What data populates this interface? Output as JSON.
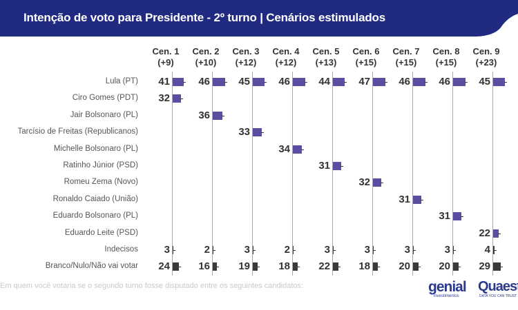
{
  "header": {
    "title": "Intenção de voto para Presidente - 2º turno | Cenários estimulados",
    "background": "#1f2a80"
  },
  "footer": {
    "question": "Em quem você votaria se o segundo turno fosse disputado entre os seguintes candidatos:",
    "logo_genial": "genial",
    "logo_genial_sub": "investimentos",
    "logo_quaest": "Quaest",
    "logo_quaest_sub": "DATA YOU CAN TRUST"
  },
  "chart_data": {
    "type": "bar",
    "columns": [
      {
        "label": "Cen. 1",
        "margin": "(+9)"
      },
      {
        "label": "Cen. 2",
        "margin": "(+10)"
      },
      {
        "label": "Cen. 3",
        "margin": "(+12)"
      },
      {
        "label": "Cen. 4",
        "margin": "(+12)"
      },
      {
        "label": "Cen. 5",
        "margin": "(+13)"
      },
      {
        "label": "Cen. 6",
        "margin": "(+15)"
      },
      {
        "label": "Cen. 7",
        "margin": "(+15)"
      },
      {
        "label": "Cen. 8",
        "margin": "(+15)"
      },
      {
        "label": "Cen. 9",
        "margin": "(+23)"
      }
    ],
    "rows": [
      {
        "label": "Lula (PT)",
        "values": [
          41,
          46,
          45,
          46,
          44,
          47,
          46,
          46,
          45
        ],
        "color": "#5a4ea0"
      },
      {
        "label": "Ciro Gomes (PDT)",
        "values": [
          32,
          null,
          null,
          null,
          null,
          null,
          null,
          null,
          null
        ],
        "color": "#5a4ea0"
      },
      {
        "label": "Jair Bolsonaro (PL)",
        "values": [
          null,
          36,
          null,
          null,
          null,
          null,
          null,
          null,
          null
        ],
        "color": "#5a4ea0"
      },
      {
        "label": "Tarcísio de Freitas (Republicanos)",
        "values": [
          null,
          null,
          33,
          null,
          null,
          null,
          null,
          null,
          null
        ],
        "color": "#5a4ea0"
      },
      {
        "label": "Michelle Bolsonaro (PL)",
        "values": [
          null,
          null,
          null,
          34,
          null,
          null,
          null,
          null,
          null
        ],
        "color": "#5a4ea0"
      },
      {
        "label": "Ratinho Júnior (PSD)",
        "values": [
          null,
          null,
          null,
          null,
          31,
          null,
          null,
          null,
          null
        ],
        "color": "#5a4ea0"
      },
      {
        "label": "Romeu Zema (Novo)",
        "values": [
          null,
          null,
          null,
          null,
          null,
          32,
          null,
          null,
          null
        ],
        "color": "#5a4ea0"
      },
      {
        "label": "Ronaldo Caiado (União)",
        "values": [
          null,
          null,
          null,
          null,
          null,
          null,
          31,
          null,
          null
        ],
        "color": "#5a4ea0"
      },
      {
        "label": "Eduardo Bolsonaro (PL)",
        "values": [
          null,
          null,
          null,
          null,
          null,
          null,
          null,
          31,
          null
        ],
        "color": "#5a4ea0"
      },
      {
        "label": "Eduardo Leite (PSD)",
        "values": [
          null,
          null,
          null,
          null,
          null,
          null,
          null,
          null,
          22
        ],
        "color": "#5a4ea0"
      },
      {
        "label": "Indecisos",
        "values": [
          3,
          2,
          3,
          2,
          3,
          3,
          3,
          3,
          4
        ],
        "color": "#3a3a3a"
      },
      {
        "label": "Branco/Nulo/Não vai votar",
        "values": [
          24,
          16,
          19,
          18,
          22,
          18,
          20,
          20,
          29
        ],
        "color": "#3a3a3a"
      }
    ]
  }
}
